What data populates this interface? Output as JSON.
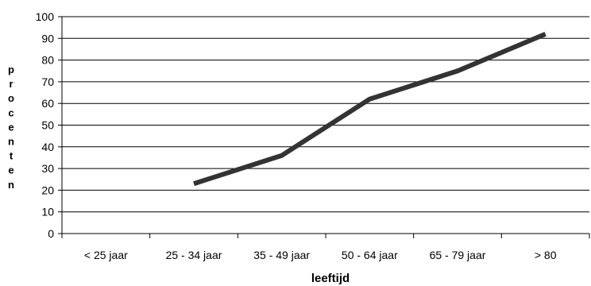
{
  "chart_data": {
    "type": "line",
    "categories": [
      "< 25 jaar",
      "25 - 34 jaar",
      "35 - 49 jaar",
      "50 - 64 jaar",
      "65 - 79 jaar",
      "> 80"
    ],
    "series": [
      {
        "values": [
          null,
          23,
          36,
          62,
          75,
          92
        ],
        "color": "#333333"
      }
    ],
    "xlabel": "leeftijd",
    "ylabel": "procenten",
    "ylim": [
      0,
      100
    ],
    "yticks": [
      0,
      10,
      20,
      30,
      40,
      50,
      60,
      70,
      80,
      90,
      100
    ],
    "grid": true,
    "legend": "none"
  }
}
